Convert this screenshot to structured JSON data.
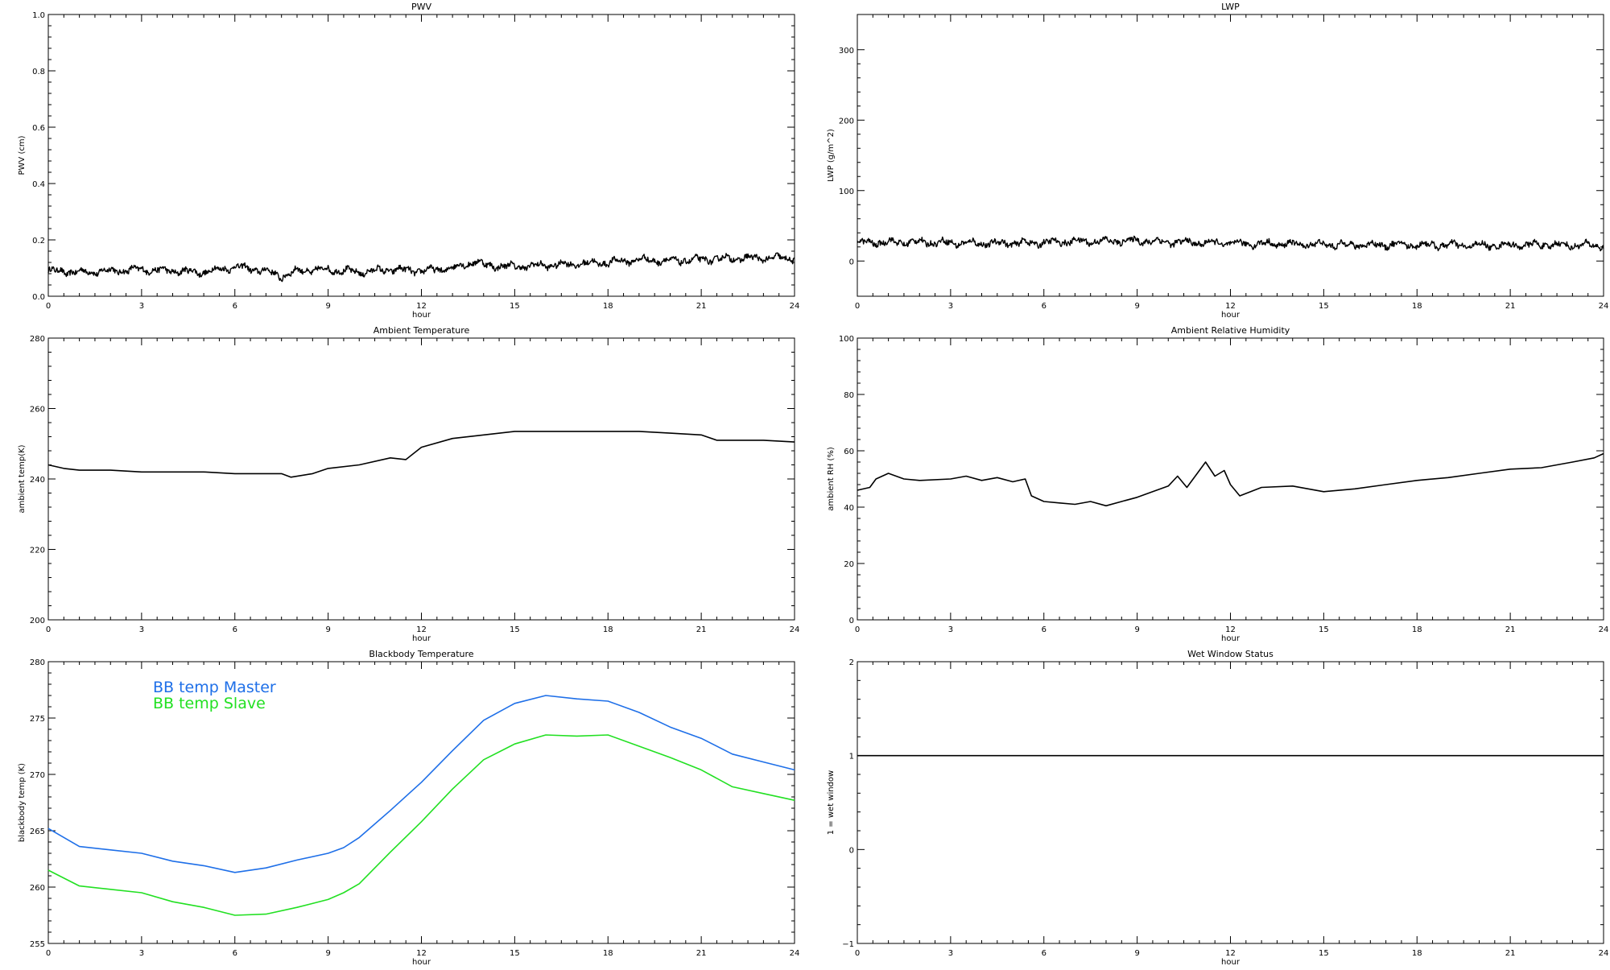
{
  "chart_data": [
    {
      "type": "line",
      "title": "PWV",
      "xlabel": "hour",
      "ylabel": "PWV (cm)",
      "xlim": [
        0,
        24
      ],
      "ylim": [
        0,
        1.0
      ],
      "x_ticks": [
        0,
        3,
        6,
        9,
        12,
        15,
        18,
        21,
        24
      ],
      "y_ticks": [
        "0.0",
        "0.2",
        "0.4",
        "0.6",
        "0.8",
        "1.0"
      ],
      "grid": false,
      "series": [
        {
          "color": "#000000",
          "noisy": true,
          "x": [
            0,
            1,
            2,
            3,
            4,
            5,
            6,
            7,
            7.5,
            8,
            9,
            10,
            11,
            12,
            13,
            13.8,
            14,
            15,
            16,
            17,
            18,
            19,
            20,
            21,
            22,
            23,
            24
          ],
          "y": [
            0.09,
            0.085,
            0.09,
            0.095,
            0.09,
            0.085,
            0.105,
            0.09,
            0.07,
            0.09,
            0.095,
            0.085,
            0.095,
            0.09,
            0.1,
            0.125,
            0.11,
            0.105,
            0.11,
            0.115,
            0.12,
            0.13,
            0.125,
            0.13,
            0.135,
            0.135,
            0.135
          ]
        }
      ]
    },
    {
      "type": "line",
      "title": "LWP",
      "xlabel": "hour",
      "ylabel": "LWP (g/m^2)",
      "xlim": [
        0,
        24
      ],
      "ylim": [
        -50,
        350
      ],
      "x_ticks": [
        0,
        3,
        6,
        9,
        12,
        15,
        18,
        21,
        24
      ],
      "y_ticks": [
        "0",
        "100",
        "200",
        "300"
      ],
      "grid": false,
      "series": [
        {
          "color": "#000000",
          "noisy": true,
          "x": [
            0,
            2,
            4,
            6,
            7,
            8,
            9,
            10,
            12,
            14,
            16,
            18,
            20,
            22,
            24
          ],
          "y": [
            26,
            27,
            25,
            26,
            28,
            28,
            29,
            27,
            25,
            24,
            23,
            23,
            22,
            23,
            22
          ]
        }
      ]
    },
    {
      "type": "line",
      "title": "Ambient Temperature",
      "xlabel": "hour",
      "ylabel": "ambient temp(K)",
      "xlim": [
        0,
        24
      ],
      "ylim": [
        200,
        280
      ],
      "x_ticks": [
        0,
        3,
        6,
        9,
        12,
        15,
        18,
        21,
        24
      ],
      "y_ticks": [
        "200",
        "220",
        "240",
        "260",
        "280"
      ],
      "grid": false,
      "series": [
        {
          "color": "#000000",
          "noisy": false,
          "x": [
            0,
            0.5,
            1,
            2,
            3,
            4,
            5,
            6,
            7,
            7.5,
            7.8,
            8.5,
            9,
            10,
            11,
            11.5,
            12,
            13,
            14,
            15,
            16,
            17,
            18,
            19,
            20,
            21,
            21.5,
            22,
            23,
            24
          ],
          "y": [
            244,
            243,
            242.5,
            242.5,
            242,
            242,
            242,
            241.5,
            241.5,
            241.5,
            240.5,
            241.5,
            243,
            244,
            246,
            245.5,
            249,
            251.5,
            252.5,
            253.5,
            253.5,
            253.5,
            253.5,
            253.5,
            253,
            252.5,
            251,
            251,
            251,
            250.5
          ]
        }
      ]
    },
    {
      "type": "line",
      "title": "Ambient Relative Humidity",
      "xlabel": "hour",
      "ylabel": "ambient RH (%)",
      "xlim": [
        0,
        24
      ],
      "ylim": [
        0,
        100
      ],
      "x_ticks": [
        0,
        3,
        6,
        9,
        12,
        15,
        18,
        21,
        24
      ],
      "y_ticks": [
        "0",
        "20",
        "40",
        "60",
        "80",
        "100"
      ],
      "grid": false,
      "series": [
        {
          "color": "#000000",
          "noisy": false,
          "x": [
            0,
            0.4,
            0.6,
            1,
            1.5,
            2,
            3,
            3.5,
            4,
            4.5,
            5,
            5.4,
            5.6,
            6,
            6.5,
            7,
            7.5,
            8,
            8.5,
            9,
            9.5,
            10,
            10.3,
            10.6,
            11,
            11.2,
            11.5,
            11.8,
            12,
            12.3,
            13,
            14,
            15,
            16,
            17,
            18,
            19,
            20,
            21,
            22,
            23,
            23.7,
            24
          ],
          "y": [
            46,
            47,
            50,
            52,
            50,
            49.5,
            50,
            51,
            49.5,
            50.5,
            49,
            50,
            44,
            42,
            41.5,
            41,
            42,
            40.5,
            42,
            43.5,
            45.5,
            47.5,
            51,
            47,
            53,
            56,
            51,
            53,
            48,
            44,
            47,
            47.5,
            45.5,
            46.5,
            48,
            49.5,
            50.5,
            52,
            53.5,
            54,
            56,
            57.5,
            59
          ]
        }
      ]
    },
    {
      "type": "line",
      "title": "Blackbody Temperature",
      "xlabel": "hour",
      "ylabel": "blackbody temp (K)",
      "xlim": [
        0,
        24
      ],
      "ylim": [
        255,
        280
      ],
      "x_ticks": [
        0,
        3,
        6,
        9,
        12,
        15,
        18,
        21,
        24
      ],
      "y_ticks": [
        "255",
        "260",
        "265",
        "270",
        "275",
        "280"
      ],
      "grid": false,
      "legend_position": "top-left",
      "series": [
        {
          "name": "BB temp Master",
          "color": "#1e6fe8",
          "noisy": false,
          "x": [
            0,
            1,
            2,
            3,
            4,
            5,
            6,
            7,
            8,
            9,
            9.5,
            10,
            11,
            12,
            13,
            14,
            15,
            16,
            17,
            18,
            19,
            20,
            21,
            22,
            23,
            24
          ],
          "y": [
            265.2,
            263.6,
            263.3,
            263,
            262.3,
            261.9,
            261.3,
            261.7,
            262.4,
            263,
            263.5,
            264.4,
            266.8,
            269.3,
            272.1,
            274.8,
            276.3,
            277,
            276.7,
            276.5,
            275.5,
            274.2,
            273.2,
            271.8,
            271.1,
            270.4
          ]
        },
        {
          "name": "BB temp Slave",
          "color": "#22e022",
          "noisy": false,
          "x": [
            0,
            1,
            2,
            3,
            4,
            5,
            6,
            7,
            8,
            9,
            9.5,
            10,
            11,
            12,
            13,
            14,
            15,
            16,
            17,
            18,
            19,
            20,
            21,
            22,
            23,
            24
          ],
          "y": [
            261.5,
            260.1,
            259.8,
            259.5,
            258.7,
            258.2,
            257.5,
            257.6,
            258.2,
            258.9,
            259.5,
            260.3,
            263.1,
            265.8,
            268.7,
            271.3,
            272.7,
            273.5,
            273.4,
            273.5,
            272.5,
            271.5,
            270.4,
            268.9,
            268.3,
            267.7
          ]
        }
      ]
    },
    {
      "type": "line",
      "title": "Wet Window Status",
      "xlabel": "hour",
      "ylabel": "1 = wet window",
      "xlim": [
        0,
        24
      ],
      "ylim": [
        -1,
        2
      ],
      "x_ticks": [
        0,
        3,
        6,
        9,
        12,
        15,
        18,
        21,
        24
      ],
      "y_ticks": [
        "−1",
        "0",
        "1",
        "2"
      ],
      "grid": false,
      "series": [
        {
          "color": "#000000",
          "noisy": false,
          "x": [
            0,
            24
          ],
          "y": [
            1,
            1
          ]
        }
      ]
    }
  ]
}
